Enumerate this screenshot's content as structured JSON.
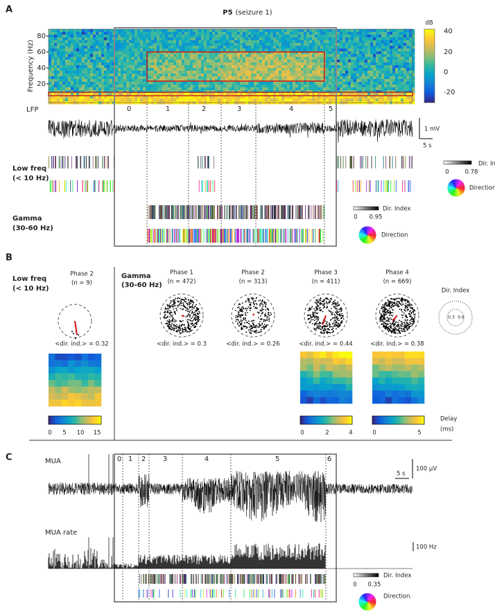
{
  "panel_a": {
    "label": "A",
    "title": "P5",
    "title_suffix": "(seizure 1)",
    "y_axis_label": "Frequency (Hz)",
    "y_ticks": [
      80,
      60,
      40,
      20
    ],
    "colorbar_unit": "dB",
    "colorbar_ticks": [
      40,
      20,
      0,
      -20
    ],
    "phases": [
      0,
      1,
      2,
      3,
      4,
      5
    ],
    "lfp_label": "LFP",
    "scale_amplitude": "1 mV",
    "scale_time": "5 s",
    "low_freq_label": "Low freq",
    "low_freq_range": "(< 10 Hz)",
    "gamma_label": "Gamma",
    "gamma_range": "(30-60 Hz)",
    "low_freq_legend": {
      "title": "Dir. Index",
      "min": 0,
      "max": 0.78,
      "direction": "Direction"
    },
    "gamma_legend": {
      "title": "Dir. Index",
      "min": 0,
      "max": 0.95,
      "direction": "Direction"
    }
  },
  "panel_b": {
    "label": "B",
    "low_freq": {
      "label": "Low freq",
      "range": "(< 10 Hz)",
      "phase": "Phase 2",
      "n": "(n = 9)",
      "dir_ind": "<dir. ind.> = 0.32",
      "colorbar_ticks": [
        0,
        5,
        10,
        15
      ]
    },
    "gamma": {
      "label": "Gamma",
      "range": "(30-60 Hz)",
      "phases": [
        {
          "name": "Phase 1",
          "n": "(n = 472)",
          "dir_ind": "<dir. ind.> = 0.3"
        },
        {
          "name": "Phase 2",
          "n": "(n = 313)",
          "dir_ind": "<dir. ind.> = 0.26"
        },
        {
          "name": "Phase 3",
          "n": "(n = 411)",
          "dir_ind": "<dir. ind.> = 0.44"
        },
        {
          "name": "Phase 4",
          "n": "(n = 669)",
          "dir_ind": "<dir. ind.> = 0.38"
        }
      ],
      "phase3_colorbar_ticks": [
        0,
        2,
        4
      ],
      "phase4_colorbar_ticks": [
        0,
        5
      ]
    },
    "dir_index_legend": {
      "title": "Dir. Index",
      "ticks": [
        0.3,
        0.6
      ]
    },
    "delay_label": "Delay",
    "delay_unit": "(ms)"
  },
  "panel_c": {
    "label": "C",
    "phases": [
      0,
      1,
      2,
      3,
      4,
      5,
      6
    ],
    "mua_label": "MUA",
    "scale_amplitude": "100 μV",
    "scale_time": "5 s",
    "rate_label": "MUA rate",
    "scale_rate": "100 Hz",
    "legend": {
      "title": "Dir. Index",
      "min": 0,
      "max": 0.35,
      "direction": "Direction."
    }
  }
}
